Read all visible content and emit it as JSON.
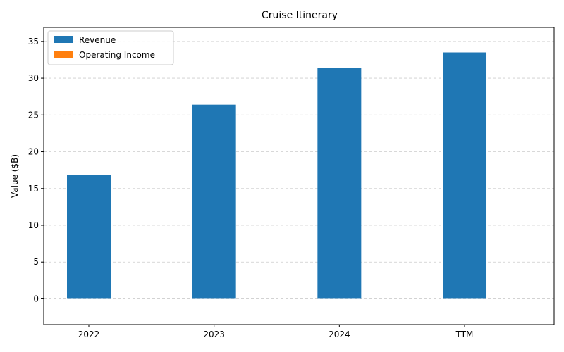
{
  "chart_data": {
    "type": "bar",
    "title": "Cruise Itinerary",
    "xlabel": "",
    "ylabel": "Value ($B)",
    "categories": [
      "2022",
      "2023",
      "2024",
      "TTM"
    ],
    "series": [
      {
        "name": "Revenue",
        "color": "#1f77b4",
        "values": [
          16.8,
          26.4,
          31.4,
          33.5
        ]
      },
      {
        "name": "Operating Income",
        "color": "#ff7f0e",
        "values": [
          0,
          0,
          0,
          0
        ]
      }
    ],
    "ylim": [
      -3.5,
      36.9
    ],
    "yticks": [
      0,
      5,
      10,
      15,
      20,
      25,
      30,
      35
    ],
    "grid": "y-dashed",
    "legend_position": "top-left"
  }
}
